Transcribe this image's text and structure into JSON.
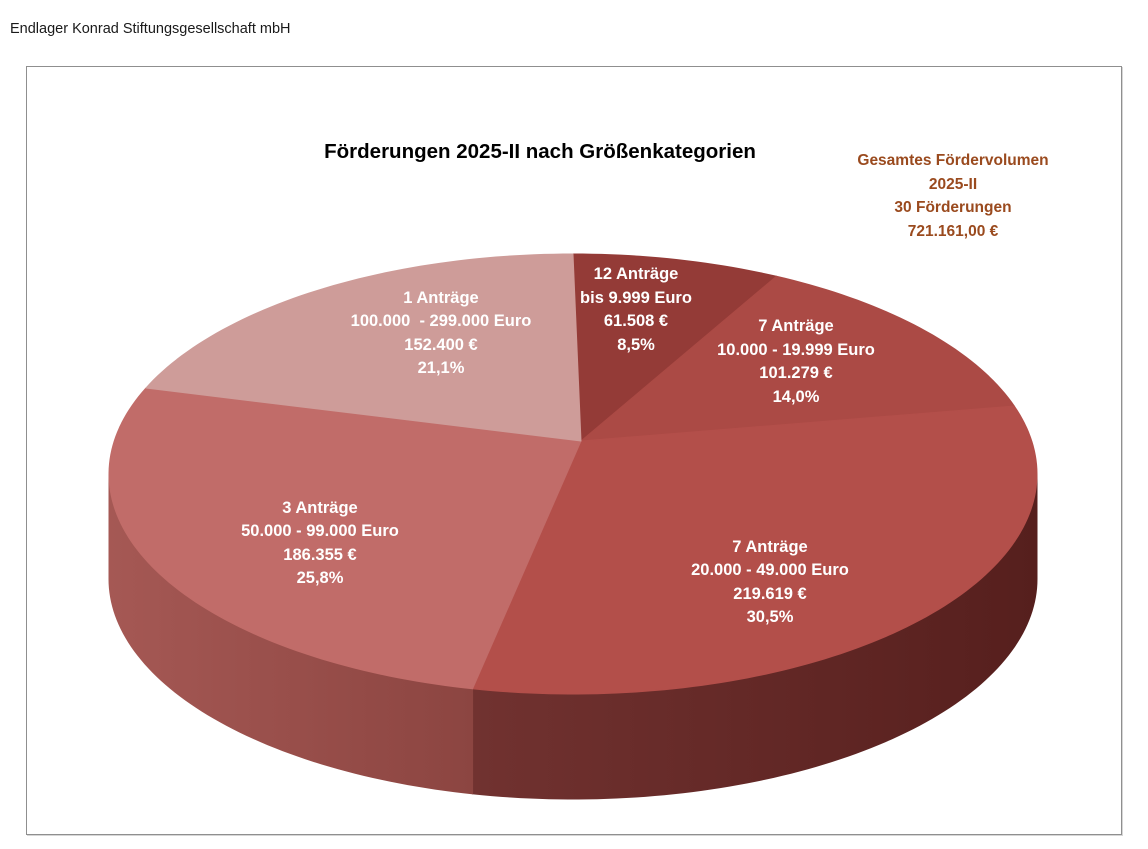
{
  "header": {
    "company_name": "Endlager Konrad Stiftungsgesellschaft mbH"
  },
  "chart_data": {
    "type": "pie",
    "style": "3d",
    "title": "Förderungen 2025-II nach Größenkategorien",
    "total_annotation": {
      "lines": [
        "Gesamtes Fördervolumen",
        "2025-II",
        "30 Förderungen",
        "721.161,00 €"
      ],
      "color": "#9A4A1E"
    },
    "total_value": 721161.0,
    "total_applications": 30,
    "currency": "EUR",
    "label_text_color": "#FFFFFF",
    "slices": [
      {
        "applications": "12 Anträge",
        "range": "bis 9.999 Euro",
        "amount": "61.508 €",
        "percent": "8,5%",
        "value": 61508,
        "percent_value": 8.5,
        "color": "#943B37"
      },
      {
        "applications": "7 Anträge",
        "range": "10.000 - 19.999 Euro",
        "amount": "101.279 €",
        "percent": "14,0%",
        "value": 101279,
        "percent_value": 14.0,
        "color": "#AB4A45"
      },
      {
        "applications": "7 Anträge",
        "range": "20.000 - 49.000 Euro",
        "amount": "219.619 €",
        "percent": "30,5%",
        "value": 219619,
        "percent_value": 30.5,
        "color": "#B34F4A",
        "side_gradient": [
          "#713230",
          "#561F1D"
        ]
      },
      {
        "applications": "3 Anträge",
        "range": "50.000 - 99.000 Euro",
        "amount": "186.355 €",
        "percent": "25,8%",
        "value": 186355,
        "percent_value": 25.8,
        "color": "#C16C69",
        "side_gradient": [
          "#A55854",
          "#8C4541"
        ]
      },
      {
        "applications": "1 Anträge",
        "range": "100.000  - 299.000 Euro",
        "amount": "152.400 €",
        "percent": "21,1%",
        "value": 152400,
        "percent_value": 21.1,
        "color": "#CE9C99"
      }
    ]
  }
}
